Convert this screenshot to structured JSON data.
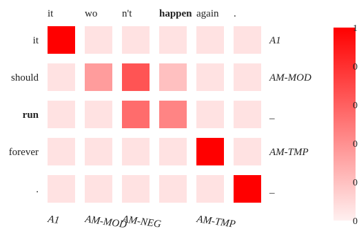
{
  "chart_data": {
    "type": "heatmap",
    "columns": [
      {
        "label": "it",
        "bold": false
      },
      {
        "label": "wo",
        "bold": false
      },
      {
        "label": "n't",
        "bold": false
      },
      {
        "label": "happen",
        "bold": true
      },
      {
        "label": "again",
        "bold": false
      },
      {
        "label": ".",
        "bold": false
      }
    ],
    "rows": [
      {
        "label": "it",
        "bold": false,
        "role": "A1"
      },
      {
        "label": "should",
        "bold": false,
        "role": "AM-MOD"
      },
      {
        "label": "run",
        "bold": true,
        "role": "_"
      },
      {
        "label": "forever",
        "bold": false,
        "role": "AM-TMP"
      },
      {
        "label": ".",
        "bold": false,
        "role": "_"
      }
    ],
    "column_roles": [
      "A1",
      "AM-MOD",
      "AM-NEG",
      "",
      "AM-TMP",
      ""
    ],
    "values": [
      [
        1.0,
        0.06,
        0.06,
        0.06,
        0.06,
        0.06
      ],
      [
        0.06,
        0.35,
        0.65,
        0.2,
        0.06,
        0.06
      ],
      [
        0.06,
        0.06,
        0.55,
        0.45,
        0.06,
        0.06
      ],
      [
        0.06,
        0.06,
        0.06,
        0.06,
        1.0,
        0.06
      ],
      [
        0.06,
        0.06,
        0.06,
        0.06,
        0.06,
        1.0
      ]
    ],
    "colorbar": {
      "range": [
        0,
        1
      ],
      "tick_labels": [
        "1",
        "0",
        "0",
        "0",
        "0",
        "0"
      ],
      "color_low": "#fff0f0",
      "color_high": "#ff0000"
    }
  }
}
